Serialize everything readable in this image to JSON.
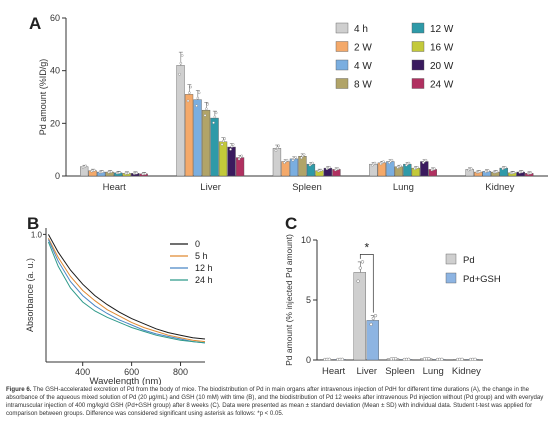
{
  "panel_labels": {
    "a": "A",
    "b": "B",
    "c": "C"
  },
  "caption": {
    "label": "Figure 6.",
    "text": "The GSH-accelerated excretion of Pd from the body of mice. The biodistribution of Pd in main organs after intravenous injection of PdH for different time durations (A), the change in the absorbance of the aqueous mixed solution of Pd (20 μg/mL) and GSH (10 mM) with time (B), and the biodistribution of Pd 12 weeks after intravenous Pd injection without (Pd group) and with everyday intramuscular injection of 400 mg/kg/d GSH (Pd+GSH group) after 8 weeks (C). Data were presented as mean ± standard deviation (Mean ± SD) with individual data. Student t-test was applied for comparison between groups. Difference was considered significant using asterisk as follows: *p < 0.05."
  },
  "colors": {
    "axis": "#333333",
    "series": [
      "#cfcfcf",
      "#f4a96a",
      "#7aaee0",
      "#b1a468",
      "#2e9aa8",
      "#c3c93a",
      "#3a1a5e",
      "#b03060"
    ],
    "lines": [
      "#1a1a1a",
      "#e08a33",
      "#4a86c5",
      "#2f9a8a"
    ],
    "groupC": [
      "#cfcfcf",
      "#8db4e2"
    ]
  },
  "chart_data": [
    {
      "type": "bar",
      "ylabel": "Pd amount (%ID/g)",
      "ylim": [
        0,
        60
      ],
      "yticks": [
        0,
        20,
        40,
        60
      ],
      "categories": [
        "Heart",
        "Liver",
        "Spleen",
        "Lung",
        "Kidney"
      ],
      "series": [
        {
          "name": "4 h",
          "values": [
            3.5,
            42,
            10.5,
            4.5,
            2.5
          ]
        },
        {
          "name": "2 W",
          "values": [
            2.0,
            31,
            5.5,
            5.0,
            1.5
          ]
        },
        {
          "name": "4 W",
          "values": [
            1.5,
            29,
            6.5,
            5.5,
            1.8
          ]
        },
        {
          "name": "8 W",
          "values": [
            1.5,
            25,
            7.5,
            3.5,
            1.5
          ]
        },
        {
          "name": "12 W",
          "values": [
            1.2,
            22,
            4.5,
            4.5,
            3.0
          ]
        },
        {
          "name": "16 W",
          "values": [
            1.0,
            13,
            2.0,
            3.0,
            1.2
          ]
        },
        {
          "name": "20 W",
          "values": [
            1.0,
            11,
            3.0,
            5.5,
            1.5
          ]
        },
        {
          "name": "24 W",
          "values": [
            0.8,
            7.0,
            2.5,
            2.5,
            1.0
          ]
        }
      ],
      "legend": "top-right, two columns"
    },
    {
      "type": "line",
      "xlabel": "Wavelength (nm)",
      "ylabel": "Absorbance (a. u.)",
      "xlim": [
        250,
        900
      ],
      "ylim": [
        0,
        1.05
      ],
      "xticks": [
        400,
        600,
        800
      ],
      "yticks": [
        1.0
      ],
      "x": [
        260,
        300,
        350,
        400,
        450,
        500,
        550,
        600,
        650,
        700,
        750,
        800,
        850,
        900
      ],
      "series": [
        {
          "name": "0",
          "values": [
            1.0,
            0.86,
            0.72,
            0.61,
            0.52,
            0.45,
            0.39,
            0.34,
            0.3,
            0.26,
            0.23,
            0.21,
            0.19,
            0.18
          ]
        },
        {
          "name": "5 h",
          "values": [
            0.97,
            0.82,
            0.67,
            0.56,
            0.48,
            0.41,
            0.36,
            0.31,
            0.27,
            0.24,
            0.21,
            0.19,
            0.17,
            0.16
          ]
        },
        {
          "name": "12 h",
          "values": [
            0.96,
            0.79,
            0.63,
            0.52,
            0.44,
            0.38,
            0.33,
            0.29,
            0.25,
            0.22,
            0.2,
            0.18,
            0.16,
            0.15
          ]
        },
        {
          "name": "24 h",
          "values": [
            0.94,
            0.75,
            0.58,
            0.47,
            0.4,
            0.35,
            0.31,
            0.27,
            0.24,
            0.21,
            0.19,
            0.17,
            0.16,
            0.15
          ]
        }
      ],
      "legend": "top-right"
    },
    {
      "type": "bar",
      "ylabel": "Pd amount (% injected Pd amount)",
      "ylim": [
        0,
        10
      ],
      "yticks": [
        0,
        5,
        10
      ],
      "categories": [
        "Heart",
        "Liver",
        "Spleen",
        "Lung",
        "Kidney"
      ],
      "series": [
        {
          "name": "Pd",
          "values": [
            0.05,
            7.3,
            0.1,
            0.1,
            0.05
          ]
        },
        {
          "name": "Pd+GSH",
          "values": [
            0.05,
            3.3,
            0.05,
            0.05,
            0.05
          ]
        }
      ],
      "annotations": [
        "*"
      ],
      "legend": "right"
    }
  ]
}
